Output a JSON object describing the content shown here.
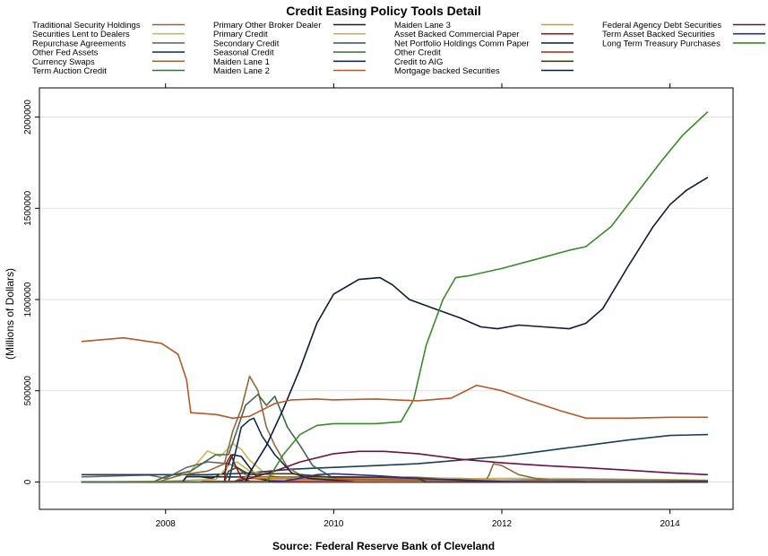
{
  "chart_data": {
    "type": "line",
    "title": "Credit Easing Policy Tools Detail",
    "ylabel": "(Millions of Dollars)",
    "source": "Source: Federal Reserve Bank of Cleveland",
    "xlim": [
      2006.5,
      2014.75
    ],
    "ylim": [
      -150000,
      2160000
    ],
    "x_ticks": [
      "2008",
      "2010",
      "2012",
      "2014"
    ],
    "y_ticks": [
      "0",
      "500000",
      "1000000",
      "1500000",
      "2000000"
    ],
    "grid": "horizontal",
    "legend_position": "top",
    "series": [
      {
        "name": "Traditional Security Holdings",
        "color": "#b35a2a",
        "x": [
          2007.0,
          2007.5,
          2007.8,
          2007.95,
          2008.15,
          2008.25,
          2008.3,
          2008.6,
          2008.8,
          2009.0,
          2009.3,
          2009.5,
          2009.8,
          2010.0,
          2010.5,
          2011.0,
          2011.4,
          2011.7,
          2012.0,
          2012.3,
          2012.7,
          2013.0,
          2013.5,
          2014.0,
          2014.45
        ],
        "y": [
          770000,
          790000,
          770000,
          760000,
          700000,
          560000,
          380000,
          370000,
          350000,
          360000,
          430000,
          450000,
          455000,
          450000,
          455000,
          445000,
          460000,
          530000,
          500000,
          450000,
          390000,
          350000,
          350000,
          355000,
          355000
        ]
      },
      {
        "name": "Securities Lent to Dealers",
        "color": "#c8b560",
        "x": [
          2007.0,
          2008.2,
          2008.35,
          2008.5,
          2008.65,
          2008.8,
          2008.9,
          2009.0,
          2009.15,
          2009.3,
          2009.5,
          2009.8,
          2010.0,
          2010.5,
          2011.0,
          2012.0,
          2013.0,
          2014.45
        ],
        "y": [
          0,
          3000,
          90000,
          170000,
          140000,
          210000,
          180000,
          120000,
          60000,
          30000,
          12000,
          8000,
          12000,
          10000,
          15000,
          20000,
          18000,
          10000
        ]
      },
      {
        "name": "Repurchase Agreements",
        "color": "#6a6a6a",
        "x": [
          2007.0,
          2007.8,
          2008.0,
          2008.25,
          2008.5,
          2008.75,
          2008.85,
          2008.95,
          2009.05,
          2009.2,
          2009.5,
          2009.8,
          2010.0,
          2010.3,
          2011.0,
          2012.0,
          2013.0,
          2014.45
        ],
        "y": [
          28000,
          38000,
          20000,
          80000,
          110000,
          100000,
          80000,
          40000,
          20000,
          10000,
          5000,
          8000,
          10000,
          12000,
          10000,
          10000,
          12000,
          8000
        ]
      },
      {
        "name": "Other Fed Assets",
        "color": "#17405a",
        "x": [
          2007.0,
          2007.5,
          2008.0,
          2008.5,
          2008.8,
          2009.0,
          2009.5,
          2010.0,
          2010.5,
          2011.0,
          2011.5,
          2012.0,
          2012.5,
          2013.0,
          2013.5,
          2014.0,
          2014.45
        ],
        "y": [
          40000,
          40000,
          40000,
          40000,
          45000,
          50000,
          70000,
          80000,
          90000,
          100000,
          120000,
          140000,
          170000,
          200000,
          230000,
          255000,
          260000
        ]
      },
      {
        "name": "Currency Swaps",
        "color": "#8f6a3a",
        "x": [
          2007.0,
          2007.9,
          2008.2,
          2008.5,
          2008.7,
          2008.8,
          2008.9,
          2009.0,
          2009.1,
          2009.2,
          2009.3,
          2009.45,
          2009.6,
          2009.8,
          2010.0,
          2010.3,
          2011.0,
          2011.8,
          2011.85,
          2011.9,
          2012.0,
          2012.2,
          2012.4,
          2012.6,
          2013.0,
          2014.45
        ],
        "y": [
          0,
          0,
          40000,
          60000,
          100000,
          280000,
          400000,
          580000,
          500000,
          300000,
          200000,
          80000,
          40000,
          10000,
          0,
          0,
          0,
          0,
          40000,
          100000,
          90000,
          40000,
          20000,
          10000,
          3000,
          0
        ]
      },
      {
        "name": "Term Auction Credit",
        "color": "#3d6b48",
        "x": [
          2007.0,
          2007.85,
          2008.0,
          2008.3,
          2008.6,
          2008.75,
          2008.95,
          2009.1,
          2009.2,
          2009.3,
          2009.45,
          2009.6,
          2009.75,
          2010.0,
          2010.2,
          2014.45
        ],
        "y": [
          0,
          0,
          30000,
          60000,
          150000,
          150000,
          420000,
          480000,
          420000,
          470000,
          300000,
          200000,
          90000,
          20000,
          0,
          0
        ]
      },
      {
        "name": "Primary Other Broker Dealer",
        "color": "#0e1f36",
        "x": [
          2007.0,
          2008.2,
          2008.25,
          2008.4,
          2008.55,
          2008.7,
          2008.8,
          2008.9,
          2009.0,
          2009.1,
          2009.3,
          2009.5,
          2014.45
        ],
        "y": [
          0,
          0,
          30000,
          30000,
          20000,
          50000,
          150000,
          140000,
          80000,
          20000,
          0,
          0,
          0
        ]
      },
      {
        "name": "Primary Credit",
        "color": "#c9ad50",
        "x": [
          2007.0,
          2007.7,
          2008.0,
          2008.3,
          2008.6,
          2008.75,
          2008.85,
          2009.0,
          2009.3,
          2009.6,
          2010.0,
          2014.45
        ],
        "y": [
          0,
          2000,
          5000,
          10000,
          15000,
          90000,
          110000,
          60000,
          30000,
          10000,
          3000,
          0
        ]
      },
      {
        "name": "Secondary Credit",
        "color": "#3b5f82",
        "x": [
          2007.0,
          2008.0,
          2008.9,
          2009.2,
          2009.5,
          2010.0,
          2014.45
        ],
        "y": [
          0,
          0,
          500,
          1000,
          500,
          0,
          0
        ]
      },
      {
        "name": "Seasonal Credit",
        "color": "#4a7a47",
        "x": [
          2007.0,
          2007.5,
          2008.0,
          2008.5,
          2009.0,
          2009.5,
          2010.0,
          2010.5,
          2011.0,
          2011.5,
          2012.0,
          2012.5,
          2013.0,
          2014.0,
          2014.45
        ],
        "y": [
          0,
          500,
          0,
          600,
          0,
          400,
          0,
          500,
          0,
          500,
          0,
          400,
          0,
          300,
          200
        ]
      },
      {
        "name": "Maiden Lane 1",
        "color": "#1b2d4a",
        "x": [
          2007.0,
          2008.2,
          2008.25,
          2008.5,
          2009.0,
          2009.5,
          2010.0,
          2011.0,
          2012.0,
          2012.5,
          2013.0,
          2014.45
        ],
        "y": [
          0,
          0,
          29000,
          29000,
          27000,
          26000,
          28000,
          25000,
          7000,
          2000,
          1500,
          1500
        ]
      },
      {
        "name": "Maiden Lane 2",
        "color": "#b25a30",
        "x": [
          2007.0,
          2008.8,
          2008.9,
          2009.5,
          2010.0,
          2011.0,
          2011.5,
          2012.0,
          2012.3,
          2014.45
        ],
        "y": [
          0,
          0,
          20000,
          18000,
          15000,
          12000,
          9000,
          5000,
          1000,
          0
        ]
      },
      {
        "name": "Maiden Lane 3",
        "color": "#d39a2a",
        "x": [
          2007.0,
          2008.85,
          2008.95,
          2009.5,
          2010.0,
          2011.0,
          2011.5,
          2012.0,
          2012.5,
          2014.45
        ],
        "y": [
          0,
          0,
          25000,
          22000,
          22000,
          22000,
          20000,
          10000,
          3000,
          0
        ]
      },
      {
        "name": "Asset Backed Commercial Paper",
        "color": "#8c1a1a",
        "x": [
          2007.0,
          2008.7,
          2008.72,
          2008.78,
          2008.82,
          2008.9,
          2009.0,
          2009.3,
          2009.6,
          2010.0,
          2014.45
        ],
        "y": [
          0,
          0,
          100000,
          150000,
          100000,
          25000,
          5000,
          0,
          0,
          0,
          0
        ]
      },
      {
        "name": "Net Portfolio Holdings Comm Paper",
        "color": "#142b57",
        "x": [
          2007.0,
          2008.75,
          2008.8,
          2008.9,
          2009.0,
          2009.05,
          2009.15,
          2009.3,
          2009.5,
          2009.7,
          2010.0,
          2010.3,
          2014.45
        ],
        "y": [
          0,
          0,
          100000,
          300000,
          340000,
          350000,
          250000,
          150000,
          50000,
          20000,
          10000,
          0,
          0
        ]
      },
      {
        "name": "Other Credit",
        "color": "#a33a2a",
        "x": [
          2007.0,
          2008.4,
          2008.45,
          2009.0,
          2009.5,
          2010.0,
          2010.5,
          2014.45
        ],
        "y": [
          0,
          0,
          4000,
          4000,
          3000,
          2000,
          0,
          0
        ]
      },
      {
        "name": "Credit to AIG",
        "color": "#4a3a1a",
        "x": [
          2007.0,
          2008.7,
          2008.75,
          2008.85,
          2009.0,
          2009.2,
          2009.5,
          2010.0,
          2010.5,
          2011.0,
          2011.1,
          2014.45
        ],
        "y": [
          0,
          0,
          60000,
          80000,
          40000,
          45000,
          45000,
          25000,
          25000,
          20000,
          0,
          0
        ]
      },
      {
        "name": "Mortgage backed Securities",
        "color": "#0c1a3b",
        "x": [
          2007.0,
          2008.95,
          2009.0,
          2009.2,
          2009.4,
          2009.6,
          2009.8,
          2010.0,
          2010.3,
          2010.55,
          2010.7,
          2010.9,
          2011.2,
          2011.5,
          2011.75,
          2011.95,
          2012.2,
          2012.5,
          2012.8,
          2013.0,
          2013.2,
          2013.5,
          2013.8,
          2014.0,
          2014.2,
          2014.45
        ],
        "y": [
          0,
          0,
          50000,
          200000,
          400000,
          620000,
          870000,
          1030000,
          1110000,
          1120000,
          1080000,
          1000000,
          950000,
          900000,
          850000,
          840000,
          860000,
          850000,
          840000,
          870000,
          950000,
          1180000,
          1400000,
          1520000,
          1600000,
          1670000
        ]
      },
      {
        "name": "Federal Agency Debt Securities",
        "color": "#6e1040",
        "x": [
          2007.0,
          2008.8,
          2009.0,
          2009.3,
          2009.6,
          2010.0,
          2010.3,
          2010.6,
          2011.0,
          2011.5,
          2012.0,
          2012.5,
          2013.0,
          2013.5,
          2014.0,
          2014.45
        ],
        "y": [
          0,
          0,
          20000,
          60000,
          110000,
          155000,
          168000,
          168000,
          155000,
          125000,
          105000,
          90000,
          78000,
          65000,
          50000,
          40000
        ]
      },
      {
        "name": "Term Asset Backed Securities",
        "color": "#2a2f8a",
        "x": [
          2007.0,
          2009.2,
          2009.4,
          2009.6,
          2009.8,
          2010.0,
          2010.5,
          2011.0,
          2011.5,
          2012.0,
          2012.5,
          2013.0,
          2014.45
        ],
        "y": [
          0,
          0,
          5000,
          20000,
          40000,
          45000,
          35000,
          20000,
          10000,
          3000,
          1000,
          0,
          0
        ]
      },
      {
        "name": "Long Term Treasury Purchases",
        "color": "#3a8a2a",
        "x": [
          2007.0,
          2009.2,
          2009.4,
          2009.6,
          2009.8,
          2010.0,
          2010.5,
          2010.8,
          2010.95,
          2011.1,
          2011.3,
          2011.45,
          2011.6,
          2011.8,
          2012.0,
          2012.4,
          2012.8,
          2013.0,
          2013.3,
          2013.6,
          2013.9,
          2014.15,
          2014.45
        ],
        "y": [
          0,
          0,
          150000,
          260000,
          310000,
          320000,
          320000,
          330000,
          450000,
          750000,
          1000000,
          1120000,
          1130000,
          1150000,
          1170000,
          1220000,
          1270000,
          1290000,
          1400000,
          1580000,
          1760000,
          1900000,
          2030000
        ]
      }
    ]
  }
}
